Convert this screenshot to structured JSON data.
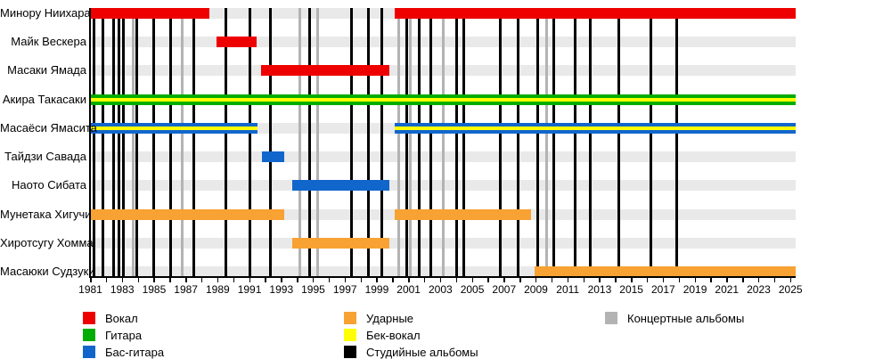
{
  "chart_data": {
    "type": "timeline",
    "title": "",
    "description": "Band member timeline (Gantt-style) with vertical markers for album releases",
    "x_axis": {
      "start_year": 1981,
      "end_year": 2025.3,
      "minor_tick_every_years": 1,
      "label_years": [
        1981,
        1983,
        1985,
        1987,
        1989,
        1991,
        1993,
        1995,
        1997,
        1999,
        2001,
        2003,
        2005,
        2007,
        2009,
        2011,
        2013,
        2015,
        2017,
        2019,
        2021,
        2023,
        2025
      ]
    },
    "rows": [
      {
        "name": "Минору Ниихара",
        "role": "vocals",
        "color": "#ee0000",
        "periods": [
          [
            1981.0,
            1988.5
          ],
          [
            2000.1,
            2025.3
          ]
        ],
        "backing_vocals": false
      },
      {
        "name": "Майк Вескера",
        "role": "vocals",
        "color": "#ee0000",
        "periods": [
          [
            1988.9,
            1991.45
          ]
        ],
        "backing_vocals": false
      },
      {
        "name": "Масаки Ямада",
        "role": "vocals",
        "color": "#ee0000",
        "periods": [
          [
            1991.75,
            1999.8
          ]
        ],
        "backing_vocals": false
      },
      {
        "name": "Акира Такасаки",
        "role": "guitar",
        "color": "#00ad00",
        "periods": [
          [
            1981.0,
            2025.3
          ]
        ],
        "backing_vocals": true
      },
      {
        "name": "Масаёси Ямасита",
        "role": "bass",
        "color": "#1166cc",
        "periods": [
          [
            1981.0,
            1991.5
          ],
          [
            2000.1,
            2025.3
          ]
        ],
        "backing_vocals": true
      },
      {
        "name": "Тайдзи Савада",
        "role": "bass",
        "color": "#1166cc",
        "periods": [
          [
            1991.8,
            1993.2
          ]
        ],
        "backing_vocals": false
      },
      {
        "name": "Наото Сибата",
        "role": "bass",
        "color": "#1166cc",
        "periods": [
          [
            1993.7,
            1999.8
          ]
        ],
        "backing_vocals": false
      },
      {
        "name": "Мунетака Хигучи",
        "role": "drums",
        "color": "#f7a233",
        "periods": [
          [
            1981.0,
            1993.2
          ],
          [
            2000.1,
            2008.7
          ]
        ],
        "backing_vocals": false
      },
      {
        "name": "Хиротсугу Хомма",
        "role": "drums",
        "color": "#f7a233",
        "periods": [
          [
            1993.7,
            1999.8
          ]
        ],
        "backing_vocals": false
      },
      {
        "name": "Масаюки Судзуки",
        "role": "drums",
        "color": "#f7a233",
        "periods": [
          [
            2008.9,
            2025.3
          ]
        ],
        "backing_vocals": false
      }
    ],
    "studio_albums": [
      1981.25,
      1981.8,
      1982.45,
      1982.8,
      1983.1,
      1983.9,
      1984.95,
      1986.05,
      1987.5,
      1989.5,
      1991.0,
      1992.3,
      1994.8,
      1997.4,
      1998.45,
      1999.3,
      2000.9,
      2001.65,
      2002.4,
      2004.0,
      2004.45,
      2006.75,
      2007.9,
      2009.1,
      2010.1,
      2011.45,
      2012.4,
      2014.2,
      2016.25,
      2017.85
    ],
    "live_albums": [
      1983.7,
      1986.75,
      1994.15,
      1995.3,
      2000.4,
      2001.1,
      2003.2,
      2009.65
    ],
    "colors": {
      "vocals": "#ee0000",
      "guitar": "#00ad00",
      "bass": "#1166cc",
      "drums": "#f7a233",
      "backing_vocal": "#ffff00",
      "studio_album_line": "#000000",
      "live_album_line": "#b3b3b3",
      "row_stripe": "#e9e9e9",
      "axis": "#000000"
    },
    "legend": {
      "columns": [
        [
          {
            "label": "Вокал",
            "color": "#ee0000"
          },
          {
            "label": "Гитара",
            "color": "#00ad00"
          },
          {
            "label": "Бас-гитара",
            "color": "#1166cc"
          }
        ],
        [
          {
            "label": "Ударные",
            "color": "#f7a233"
          },
          {
            "label": "Бек-вокал",
            "color": "#ffff00"
          },
          {
            "label": "Студийные альбомы",
            "color": "#000000"
          }
        ],
        [
          {
            "label": "Концертные альбомы",
            "color": "#b3b3b3"
          }
        ]
      ]
    }
  }
}
